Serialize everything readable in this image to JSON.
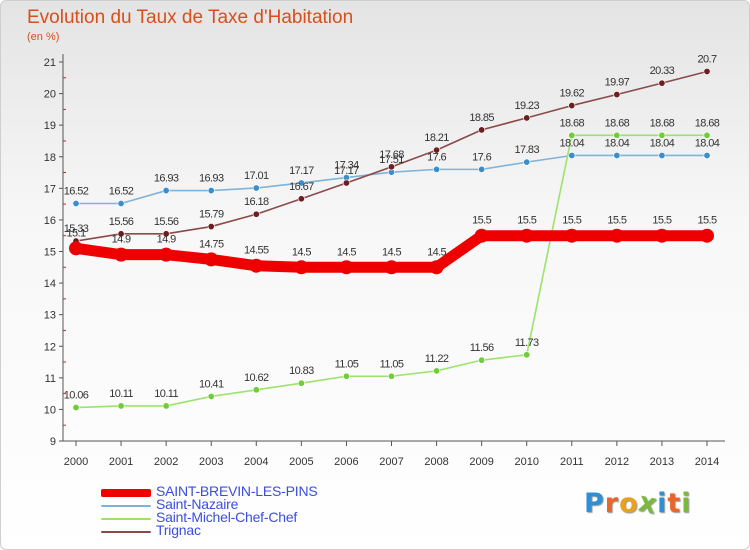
{
  "title": "Evolution du Taux de Taxe d'Habitation",
  "unit_label": "(en %)",
  "logo": {
    "letters": [
      "P",
      "r",
      "o",
      "x",
      "i",
      "t",
      "i"
    ],
    "colors": [
      "#2f8fd6",
      "#e8662a",
      "#e8a21c",
      "#7ab93b",
      "#2f8fd6",
      "#e8662a",
      "#7ab93b"
    ]
  },
  "chart_data": {
    "type": "line",
    "title": "Evolution du Taux de Taxe d'Habitation",
    "ylabel": "(en %)",
    "xlabel": "",
    "x": [
      2000,
      2001,
      2002,
      2003,
      2004,
      2005,
      2006,
      2007,
      2008,
      2009,
      2010,
      2011,
      2012,
      2013,
      2014
    ],
    "ylim": [
      9,
      21
    ],
    "y_ticks": [
      9,
      10,
      11,
      12,
      13,
      14,
      15,
      16,
      17,
      18,
      19,
      20,
      21
    ],
    "grid": false,
    "legend_position": "bottom-left",
    "series": [
      {
        "name": "SAINT-BREVIN-LES-PINS",
        "color": "#ee0000",
        "point_color": "#ee0000",
        "emphasis": true,
        "values": [
          15.1,
          14.9,
          14.9,
          14.75,
          14.55,
          14.5,
          14.5,
          14.5,
          14.5,
          15.5,
          15.5,
          15.5,
          15.5,
          15.5,
          15.5
        ],
        "labels": [
          "15.1",
          "14.9",
          "14.9",
          "14.75",
          "14.55",
          "14.5",
          "14.5",
          "14.5",
          "14.5",
          "15.5",
          "15.5",
          "15.5",
          "15.5",
          "15.5",
          "15.5"
        ]
      },
      {
        "name": "Saint-Nazaire",
        "color": "#7fb3d9",
        "point_color": "#3c8dcc",
        "emphasis": false,
        "values": [
          16.52,
          16.52,
          16.93,
          16.93,
          17.01,
          17.17,
          17.34,
          17.51,
          17.6,
          17.6,
          17.83,
          18.04,
          18.04,
          18.04,
          18.04
        ],
        "labels": [
          "16.52",
          "16.52",
          "16.93",
          "16.93",
          "17.01",
          "17.17",
          "17.34",
          "17.51",
          "17.6",
          "17.6",
          "17.83",
          "18.04",
          "18.04",
          "18.04",
          "18.04"
        ]
      },
      {
        "name": "Saint-Michel-Chef-Chef",
        "color": "#9be36b",
        "point_color": "#6fcd36",
        "emphasis": false,
        "values": [
          10.06,
          10.11,
          10.11,
          10.41,
          10.62,
          10.83,
          11.05,
          11.05,
          11.22,
          11.56,
          11.73,
          18.68,
          18.68,
          18.68,
          18.68
        ],
        "labels": [
          "10.06",
          "10.11",
          "10.11",
          "10.41",
          "10.62",
          "10.83",
          "11.05",
          "11.05",
          "11.22",
          "11.56",
          "11.73",
          "18.68",
          "18.68",
          "18.68",
          "18.68"
        ]
      },
      {
        "name": "Trignac",
        "color": "#8a4a4a",
        "point_color": "#6e1e1e",
        "emphasis": false,
        "values": [
          15.33,
          15.56,
          15.56,
          15.79,
          16.18,
          16.67,
          17.17,
          17.68,
          18.21,
          18.85,
          19.23,
          19.62,
          19.97,
          20.33,
          20.7
        ],
        "labels": [
          "15.33",
          "15.56",
          "15.56",
          "15.79",
          "16.18",
          "16.67",
          "17.17",
          "17.68",
          "18.21",
          "18.85",
          "19.23",
          "19.62",
          "19.97",
          "20.33",
          "20.7"
        ]
      }
    ]
  }
}
